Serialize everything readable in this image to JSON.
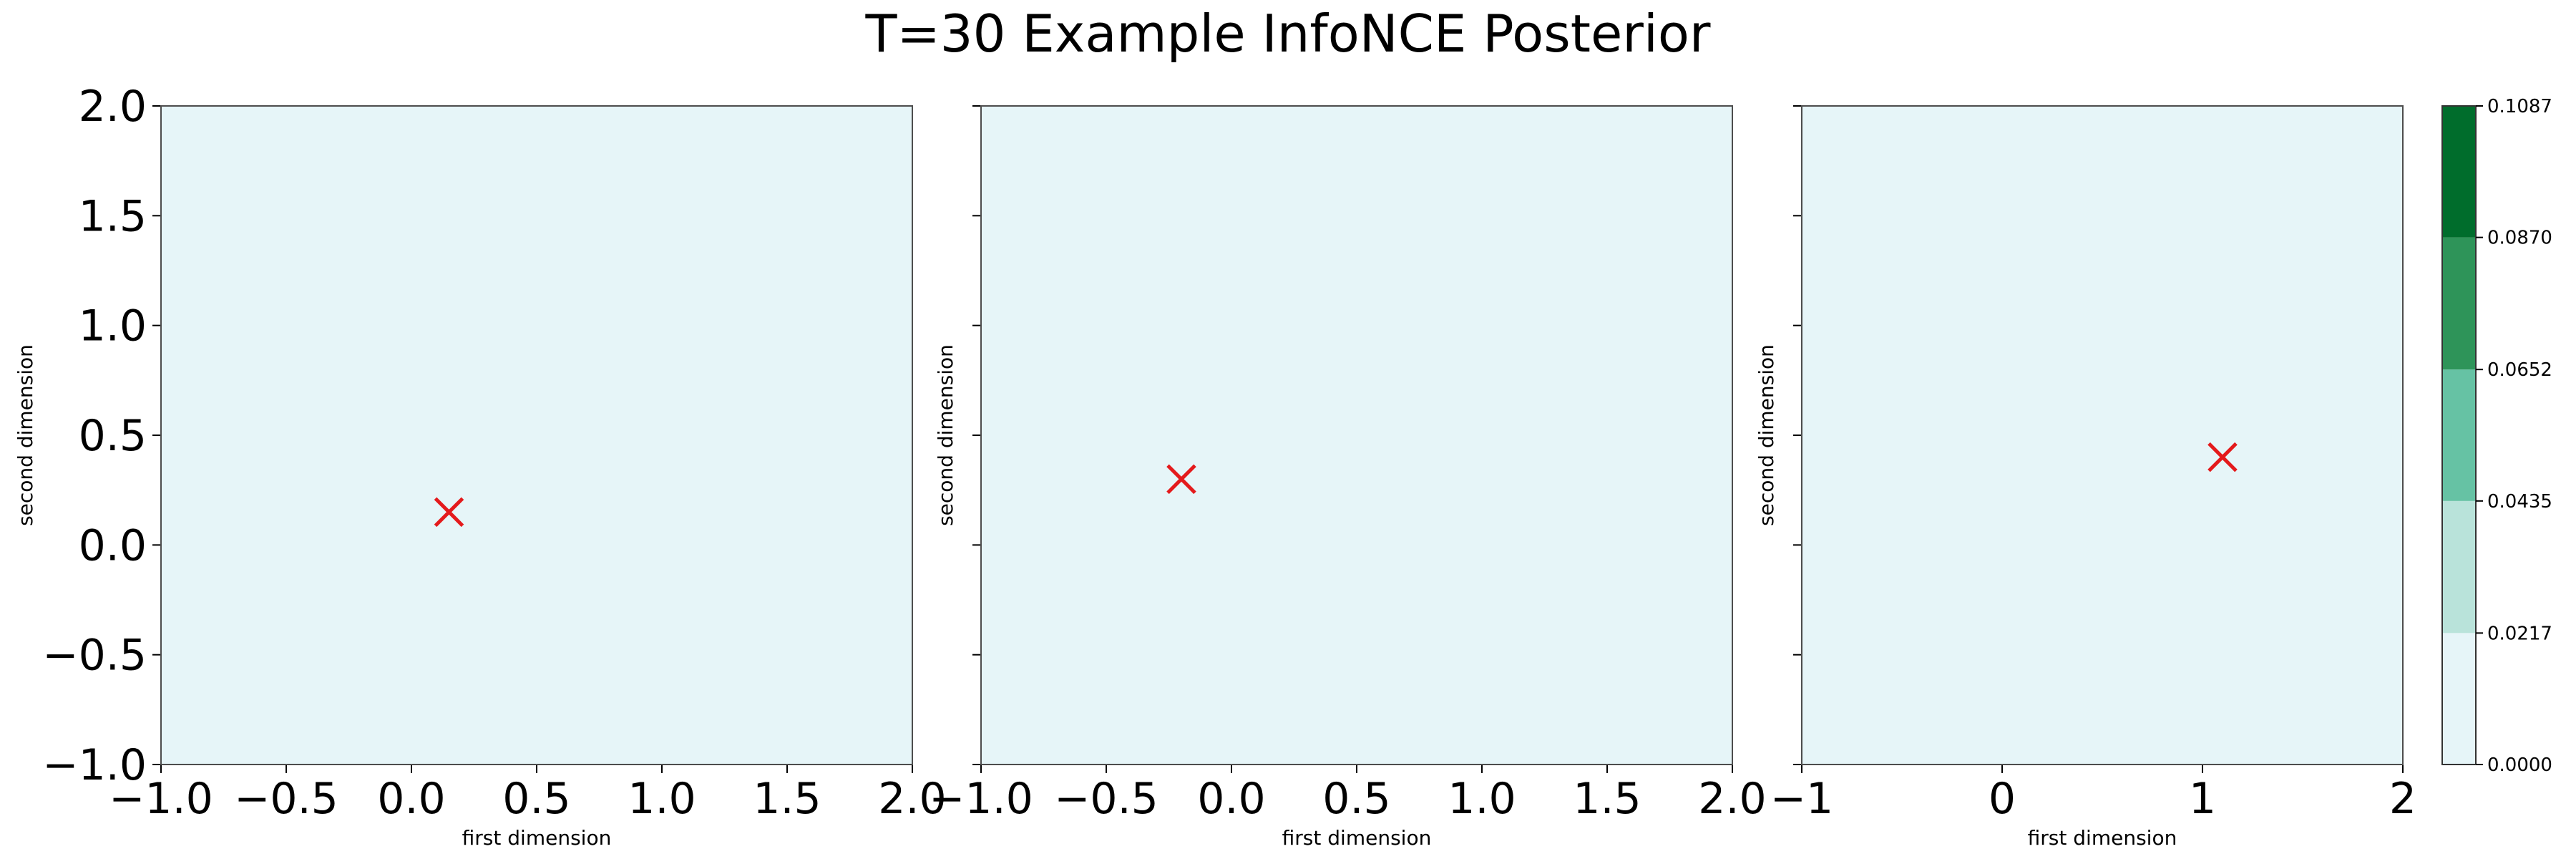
{
  "title": "T=30 Example InfoNCE Posterior",
  "chart_data": [
    {
      "type": "heatmap",
      "xlabel": "first dimension",
      "ylabel": "second dimension",
      "xlim": [
        -1.0,
        2.0
      ],
      "ylim": [
        -1.0,
        2.0
      ],
      "xticks": [
        "−1.0",
        "−0.5",
        "0.0",
        "0.5",
        "1.0",
        "1.5",
        "2.0"
      ],
      "xtick_values": [
        -1.0,
        -0.5,
        0.0,
        0.5,
        1.0,
        1.5,
        2.0
      ],
      "yticks": [
        "−1.0",
        "−0.5",
        "0.0",
        "0.5",
        "1.0",
        "1.5",
        "2.0"
      ],
      "ytick_values": [
        -1.0,
        -0.5,
        0.0,
        0.5,
        1.0,
        1.5,
        2.0
      ],
      "show_ytick_labels": true,
      "fill_color": "#e6f5f8",
      "marker": {
        "x": 0.15,
        "y": 0.15,
        "symbol": "x",
        "color": "#e41a1c"
      }
    },
    {
      "type": "heatmap",
      "xlabel": "first dimension",
      "ylabel": "second dimension",
      "xlim": [
        -1.0,
        2.0
      ],
      "ylim": [
        -1.0,
        2.0
      ],
      "xticks": [
        "−1.0",
        "−0.5",
        "0.0",
        "0.5",
        "1.0",
        "1.5",
        "2.0"
      ],
      "xtick_values": [
        -1.0,
        -0.5,
        0.0,
        0.5,
        1.0,
        1.5,
        2.0
      ],
      "yticks": [],
      "ytick_values": [
        -1.0,
        -0.5,
        0.0,
        0.5,
        1.0,
        1.5,
        2.0
      ],
      "show_ytick_labels": false,
      "fill_color": "#e6f5f8",
      "marker": {
        "x": -0.2,
        "y": 0.3,
        "symbol": "x",
        "color": "#e41a1c"
      }
    },
    {
      "type": "heatmap",
      "xlabel": "first dimension",
      "ylabel": "second dimension",
      "xlim": [
        -1.0,
        2.0
      ],
      "ylim": [
        -1.0,
        2.0
      ],
      "xticks": [
        "−1",
        "0",
        "1",
        "2"
      ],
      "xtick_values": [
        -1,
        0,
        1,
        2
      ],
      "yticks": [],
      "ytick_values": [
        -1.0,
        -0.5,
        0.0,
        0.5,
        1.0,
        1.5,
        2.0
      ],
      "show_ytick_labels": false,
      "fill_color": "#e6f5f8",
      "marker": {
        "x": 1.1,
        "y": 0.4,
        "symbol": "x",
        "color": "#e41a1c"
      }
    }
  ],
  "colorbar": {
    "levels": [
      "0.0000",
      "0.0217",
      "0.0435",
      "0.0652",
      "0.0870",
      "0.1087"
    ],
    "level_values": [
      0.0,
      0.0217,
      0.0435,
      0.0652,
      0.087,
      0.1087
    ],
    "colors": [
      "#e6f5f8",
      "#b9e3da",
      "#66c2a4",
      "#2e9459",
      "#006d2c"
    ]
  }
}
